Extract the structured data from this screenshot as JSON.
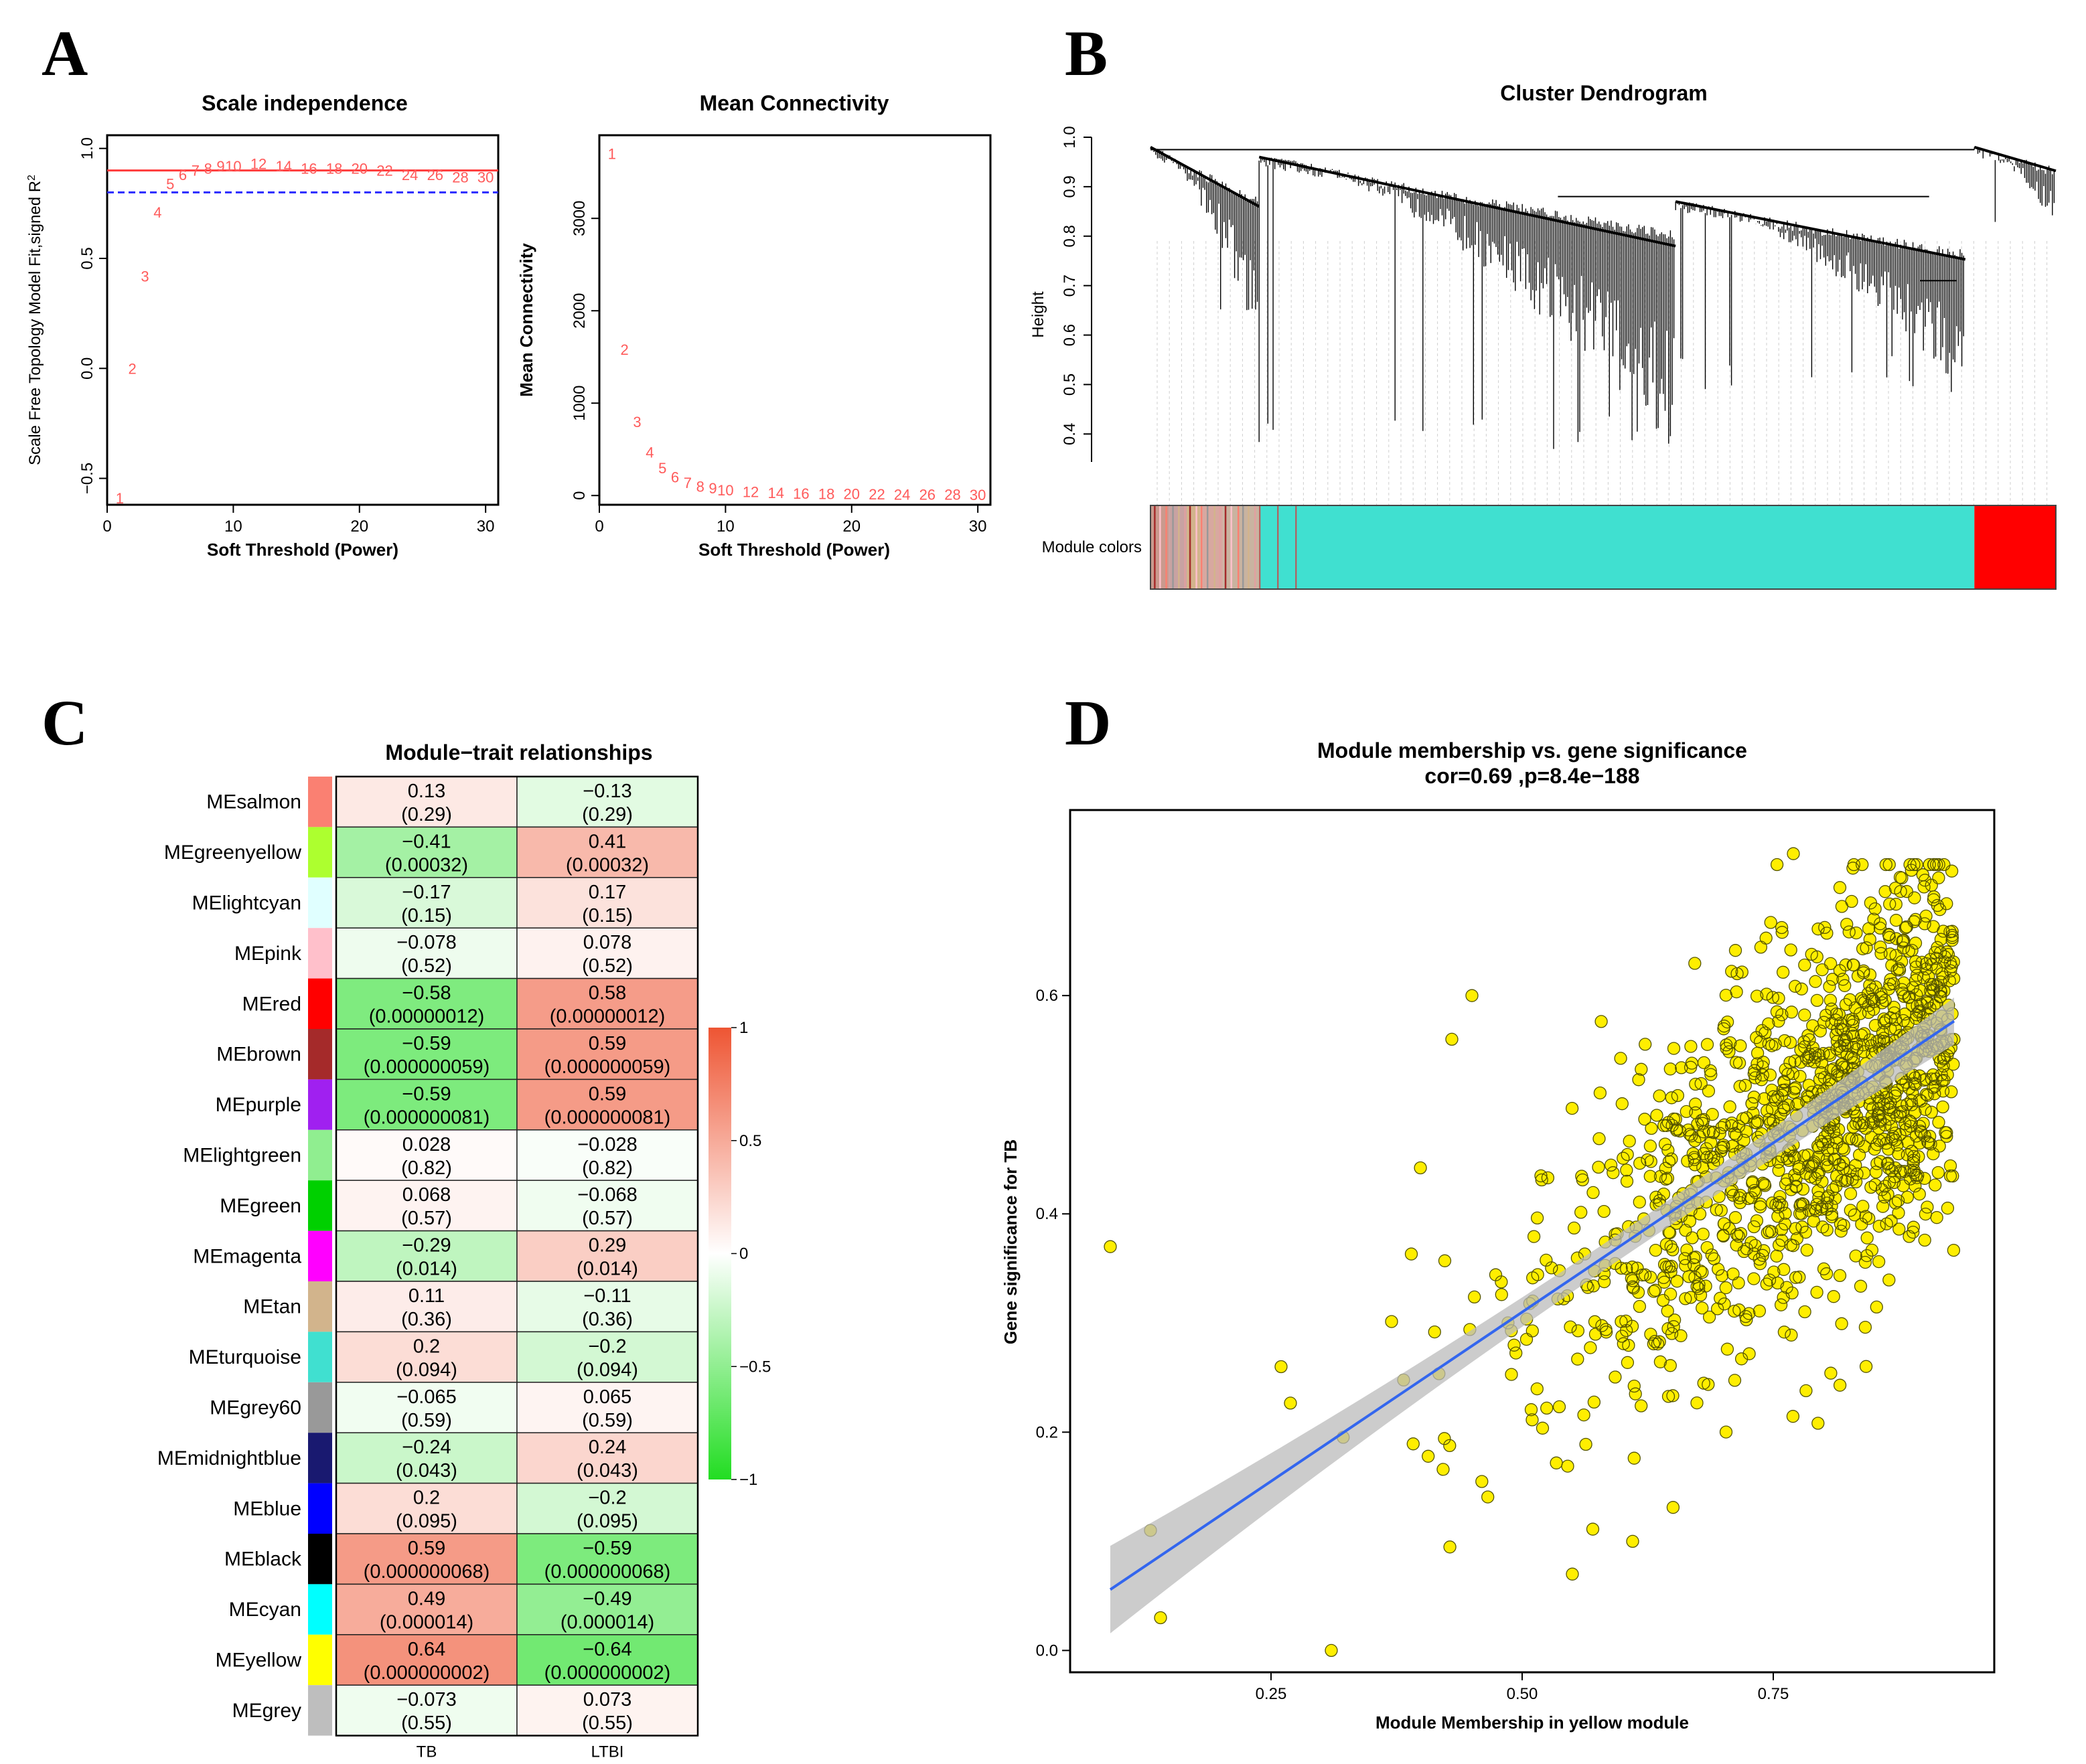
{
  "panels": {
    "a": {
      "label": "A"
    },
    "b": {
      "label": "B"
    },
    "c": {
      "label": "C"
    },
    "d": {
      "label": "D"
    }
  },
  "chart_data": [
    {
      "id": "scale_independence",
      "type": "scatter",
      "title": "Scale independence",
      "xlabel": "Soft Threshold (Power)",
      "ylabel": "Scale Free Topology Model Fit,signed R^2",
      "xlim": [
        0,
        31
      ],
      "ylim": [
        -0.62,
        1.06
      ],
      "xticks": [
        0,
        10,
        20,
        30
      ],
      "yticks": [
        -0.5,
        0.0,
        0.5,
        1.0
      ],
      "ytick_labels": [
        "−0.5",
        "0.0",
        "0.5",
        "1.0"
      ],
      "hlines": [
        {
          "y": 0.9,
          "color": "#ff3b3b",
          "style": "solid"
        },
        {
          "y": 0.8,
          "color": "#2b2bff",
          "style": "dashed"
        }
      ],
      "points": [
        {
          "x": 1,
          "y": -0.59,
          "label": "1"
        },
        {
          "x": 2,
          "y": 0.0,
          "label": "2"
        },
        {
          "x": 3,
          "y": 0.42,
          "label": "3"
        },
        {
          "x": 4,
          "y": 0.71,
          "label": "4"
        },
        {
          "x": 5,
          "y": 0.84,
          "label": "5"
        },
        {
          "x": 6,
          "y": 0.88,
          "label": "6"
        },
        {
          "x": 7,
          "y": 0.9,
          "label": "7"
        },
        {
          "x": 8,
          "y": 0.91,
          "label": "8"
        },
        {
          "x": 9,
          "y": 0.92,
          "label": "9"
        },
        {
          "x": 10,
          "y": 0.92,
          "label": "10"
        },
        {
          "x": 12,
          "y": 0.93,
          "label": "12"
        },
        {
          "x": 14,
          "y": 0.92,
          "label": "14"
        },
        {
          "x": 16,
          "y": 0.91,
          "label": "16"
        },
        {
          "x": 18,
          "y": 0.91,
          "label": "18"
        },
        {
          "x": 20,
          "y": 0.91,
          "label": "20"
        },
        {
          "x": 22,
          "y": 0.9,
          "label": "22"
        },
        {
          "x": 24,
          "y": 0.88,
          "label": "24"
        },
        {
          "x": 26,
          "y": 0.88,
          "label": "26"
        },
        {
          "x": 28,
          "y": 0.87,
          "label": "28"
        },
        {
          "x": 30,
          "y": 0.87,
          "label": "30"
        }
      ]
    },
    {
      "id": "mean_connectivity",
      "type": "scatter",
      "title": "Mean Connectivity",
      "xlabel": "Soft Threshold (Power)",
      "ylabel": "Mean Connectivity",
      "xlim": [
        0,
        31
      ],
      "ylim": [
        -100,
        3900
      ],
      "xticks": [
        0,
        10,
        20,
        30
      ],
      "yticks": [
        0,
        1000,
        2000,
        3000
      ],
      "points": [
        {
          "x": 1,
          "y": 3700,
          "label": "1"
        },
        {
          "x": 2,
          "y": 1580,
          "label": "2"
        },
        {
          "x": 3,
          "y": 800,
          "label": "3"
        },
        {
          "x": 4,
          "y": 470,
          "label": "4"
        },
        {
          "x": 5,
          "y": 300,
          "label": "5"
        },
        {
          "x": 6,
          "y": 200,
          "label": "6"
        },
        {
          "x": 7,
          "y": 140,
          "label": "7"
        },
        {
          "x": 8,
          "y": 100,
          "label": "8"
        },
        {
          "x": 9,
          "y": 80,
          "label": "9"
        },
        {
          "x": 10,
          "y": 60,
          "label": "10"
        },
        {
          "x": 12,
          "y": 40,
          "label": "12"
        },
        {
          "x": 14,
          "y": 30,
          "label": "14"
        },
        {
          "x": 16,
          "y": 25,
          "label": "16"
        },
        {
          "x": 18,
          "y": 20,
          "label": "18"
        },
        {
          "x": 20,
          "y": 18,
          "label": "20"
        },
        {
          "x": 22,
          "y": 16,
          "label": "22"
        },
        {
          "x": 24,
          "y": 14,
          "label": "24"
        },
        {
          "x": 26,
          "y": 12,
          "label": "26"
        },
        {
          "x": 28,
          "y": 11,
          "label": "28"
        },
        {
          "x": 30,
          "y": 10,
          "label": "30"
        }
      ]
    },
    {
      "id": "cluster_dendrogram",
      "type": "dendrogram",
      "title": "Cluster Dendrogram",
      "ylabel": "Height",
      "ylim": [
        0.33,
        1.0
      ],
      "yticks": [
        0.4,
        0.5,
        0.6,
        0.7,
        0.8,
        0.9,
        1.0
      ],
      "ytick_labels": [
        "0.4",
        "0.5",
        "0.6",
        "0.7",
        "0.8",
        "0.9",
        "1.0"
      ],
      "color_bar_label": "Module colors",
      "branches": [
        {
          "name": "left mixed",
          "start": 0.0,
          "end": 0.12,
          "top": 0.98,
          "bottom": 0.58
        },
        {
          "name": "turquoise-1",
          "start": 0.12,
          "end": 0.58,
          "top": 0.96,
          "bottom": 0.36
        },
        {
          "name": "turquoise-2",
          "start": 0.58,
          "end": 0.9,
          "top": 0.87,
          "bottom": 0.48
        },
        {
          "name": "red",
          "start": 0.91,
          "end": 1.0,
          "top": 0.98,
          "bottom": 0.82
        }
      ],
      "module_color_segments": [
        {
          "color": "#c99a8e",
          "start": 0.0,
          "end": 0.02
        },
        {
          "color": "#c8a2a2",
          "start": 0.02,
          "end": 0.04
        },
        {
          "color": "#d2b48c",
          "start": 0.04,
          "end": 0.055
        },
        {
          "color": "#d8a8a0",
          "start": 0.055,
          "end": 0.08
        },
        {
          "color": "#c9b3a0",
          "start": 0.08,
          "end": 0.12
        },
        {
          "color": "#40e0d0",
          "start": 0.12,
          "end": 0.91
        },
        {
          "color": "#ff0000",
          "start": 0.91,
          "end": 1.0
        }
      ]
    },
    {
      "id": "module_trait",
      "type": "heatmap",
      "title": "Module−trait relationships",
      "columns": [
        "TB",
        "LTBI"
      ],
      "rows": [
        {
          "module": "MEsalmon",
          "color": "#fa8072",
          "tb": {
            "cor": "0.13",
            "p": "(0.29)"
          },
          "ltbi": {
            "cor": "−0.13",
            "p": "(0.29)"
          },
          "tb_value": 0.13,
          "ltbi_value": -0.13
        },
        {
          "module": "MEgreenyellow",
          "color": "#adff2f",
          "tb": {
            "cor": "−0.41",
            "p": "(0.00032)"
          },
          "ltbi": {
            "cor": "0.41",
            "p": "(0.00032)"
          },
          "tb_value": -0.41,
          "ltbi_value": 0.41
        },
        {
          "module": "MElightcyan",
          "color": "#e0ffff",
          "tb": {
            "cor": "−0.17",
            "p": "(0.15)"
          },
          "ltbi": {
            "cor": "0.17",
            "p": "(0.15)"
          },
          "tb_value": -0.17,
          "ltbi_value": 0.17
        },
        {
          "module": "MEpink",
          "color": "#ffc0cb",
          "tb": {
            "cor": "−0.078",
            "p": "(0.52)"
          },
          "ltbi": {
            "cor": "0.078",
            "p": "(0.52)"
          },
          "tb_value": -0.078,
          "ltbi_value": 0.078
        },
        {
          "module": "MEred",
          "color": "#ff0000",
          "tb": {
            "cor": "−0.58",
            "p": "(0.00000012)"
          },
          "ltbi": {
            "cor": "0.58",
            "p": "(0.00000012)"
          },
          "tb_value": -0.58,
          "ltbi_value": 0.58
        },
        {
          "module": "MEbrown",
          "color": "#a52a2a",
          "tb": {
            "cor": "−0.59",
            "p": "(0.000000059)"
          },
          "ltbi": {
            "cor": "0.59",
            "p": "(0.000000059)"
          },
          "tb_value": -0.59,
          "ltbi_value": 0.59
        },
        {
          "module": "MEpurple",
          "color": "#a020f0",
          "tb": {
            "cor": "−0.59",
            "p": "(0.000000081)"
          },
          "ltbi": {
            "cor": "0.59",
            "p": "(0.000000081)"
          },
          "tb_value": -0.59,
          "ltbi_value": 0.59
        },
        {
          "module": "MElightgreen",
          "color": "#90ee90",
          "tb": {
            "cor": "0.028",
            "p": "(0.82)"
          },
          "ltbi": {
            "cor": "−0.028",
            "p": "(0.82)"
          },
          "tb_value": 0.028,
          "ltbi_value": -0.028
        },
        {
          "module": "MEgreen",
          "color": "#00d000",
          "tb": {
            "cor": "0.068",
            "p": "(0.57)"
          },
          "ltbi": {
            "cor": "−0.068",
            "p": "(0.57)"
          },
          "tb_value": 0.068,
          "ltbi_value": -0.068
        },
        {
          "module": "MEmagenta",
          "color": "#ff00ff",
          "tb": {
            "cor": "−0.29",
            "p": "(0.014)"
          },
          "ltbi": {
            "cor": "0.29",
            "p": "(0.014)"
          },
          "tb_value": -0.29,
          "ltbi_value": 0.29
        },
        {
          "module": "MEtan",
          "color": "#d2b48c",
          "tb": {
            "cor": "0.11",
            "p": "(0.36)"
          },
          "ltbi": {
            "cor": "−0.11",
            "p": "(0.36)"
          },
          "tb_value": 0.11,
          "ltbi_value": -0.11
        },
        {
          "module": "MEturquoise",
          "color": "#40e0d0",
          "tb": {
            "cor": "0.2",
            "p": "(0.094)"
          },
          "ltbi": {
            "cor": "−0.2",
            "p": "(0.094)"
          },
          "tb_value": 0.2,
          "ltbi_value": -0.2
        },
        {
          "module": "MEgrey60",
          "color": "#999999",
          "tb": {
            "cor": "−0.065",
            "p": "(0.59)"
          },
          "ltbi": {
            "cor": "0.065",
            "p": "(0.59)"
          },
          "tb_value": -0.065,
          "ltbi_value": 0.065
        },
        {
          "module": "MEmidnightblue",
          "color": "#191970",
          "tb": {
            "cor": "−0.24",
            "p": "(0.043)"
          },
          "ltbi": {
            "cor": "0.24",
            "p": "(0.043)"
          },
          "tb_value": -0.24,
          "ltbi_value": 0.24
        },
        {
          "module": "MEblue",
          "color": "#0000ff",
          "tb": {
            "cor": "0.2",
            "p": "(0.095)"
          },
          "ltbi": {
            "cor": "−0.2",
            "p": "(0.095)"
          },
          "tb_value": 0.2,
          "ltbi_value": -0.2
        },
        {
          "module": "MEblack",
          "color": "#000000",
          "tb": {
            "cor": "0.59",
            "p": "(0.000000068)"
          },
          "ltbi": {
            "cor": "−0.59",
            "p": "(0.000000068)"
          },
          "tb_value": 0.59,
          "ltbi_value": -0.59
        },
        {
          "module": "MEcyan",
          "color": "#00ffff",
          "tb": {
            "cor": "0.49",
            "p": "(0.000014)"
          },
          "ltbi": {
            "cor": "−0.49",
            "p": "(0.000014)"
          },
          "tb_value": 0.49,
          "ltbi_value": -0.49
        },
        {
          "module": "MEyellow",
          "color": "#ffff00",
          "tb": {
            "cor": "0.64",
            "p": "(0.000000002)"
          },
          "ltbi": {
            "cor": "−0.64",
            "p": "(0.000000002)"
          },
          "tb_value": 0.64,
          "ltbi_value": -0.64
        },
        {
          "module": "MEgrey",
          "color": "#bebebe",
          "tb": {
            "cor": "−0.073",
            "p": "(0.55)"
          },
          "ltbi": {
            "cor": "0.073",
            "p": "(0.55)"
          },
          "tb_value": -0.073,
          "ltbi_value": 0.073
        }
      ],
      "colorscale": {
        "min": -1,
        "max": 1,
        "ticks": [
          "1",
          "0.5",
          "0",
          "−0.5",
          "−1"
        ],
        "tick_values": [
          1,
          0.5,
          0,
          -0.5,
          -1
        ],
        "colors": {
          "negative": "#22dd22",
          "zero": "#ffffff",
          "positive": "#ee5533"
        }
      }
    },
    {
      "id": "mm_vs_gs",
      "type": "scatter",
      "title": "Module membership vs. gene significance",
      "subtitle": "cor=0.69 ,p=8.4e−188",
      "xlabel": "Module Membership in yellow module",
      "ylabel": "Gene significance for TB",
      "xlim": [
        0.05,
        0.97
      ],
      "ylim": [
        -0.02,
        0.77
      ],
      "xticks": [
        0.25,
        0.5,
        0.75
      ],
      "xtick_labels": [
        "0.25",
        "0.50",
        "0.75"
      ],
      "yticks": [
        0.0,
        0.2,
        0.4,
        0.6
      ],
      "ytick_labels": [
        "0.0",
        "0.2",
        "0.4",
        "0.6"
      ],
      "point_color": "#ffee00",
      "n_points_approx": 1300,
      "regression": {
        "slope": 0.62,
        "intercept": 0.0,
        "x_start": 0.09,
        "x_end": 0.93,
        "line_color": "#3366ee",
        "band_color": "#bbbbbb"
      },
      "highlighted_points": [
        {
          "x": 0.09,
          "y": 0.37
        },
        {
          "x": 0.13,
          "y": 0.11
        },
        {
          "x": 0.14,
          "y": 0.03
        },
        {
          "x": 0.26,
          "y": 0.26
        },
        {
          "x": 0.31,
          "y": 0.0
        },
        {
          "x": 0.55,
          "y": 0.07
        },
        {
          "x": 0.61,
          "y": 0.1
        },
        {
          "x": 0.77,
          "y": 0.73
        },
        {
          "x": 0.89,
          "y": 0.72
        },
        {
          "x": 0.43,
          "y": 0.56
        },
        {
          "x": 0.45,
          "y": 0.6
        }
      ]
    }
  ]
}
